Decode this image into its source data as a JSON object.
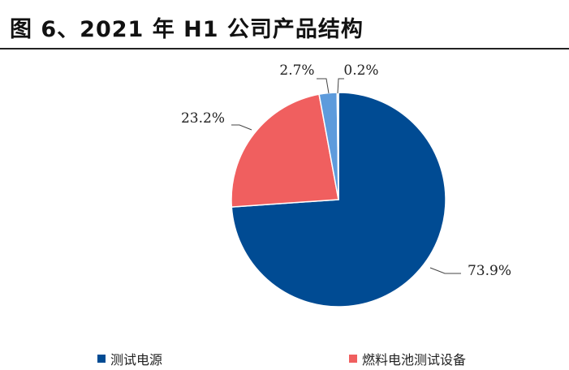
{
  "page": {
    "title": "图 6、2021 年 H1 公司产品结构"
  },
  "chart_data": {
    "type": "pie",
    "title": "",
    "slices": [
      {
        "name": "测试电源",
        "value": 73.9,
        "label": "73.9%",
        "color": "#004b93"
      },
      {
        "name": "燃料电池测试设备",
        "value": 23.2,
        "label": "23.2%",
        "color": "#f05f5f"
      },
      {
        "name": "",
        "value": 2.7,
        "label": "2.7%",
        "color": "#5d9bdc"
      },
      {
        "name": "",
        "value": 0.2,
        "label": "0.2%",
        "color": "#b0c6e4"
      }
    ],
    "legend": {
      "position": "bottom",
      "entries": [
        {
          "name": "测试电源",
          "color": "#004b93"
        },
        {
          "name": "燃料电池测试设备",
          "color": "#f05f5f"
        }
      ]
    }
  }
}
